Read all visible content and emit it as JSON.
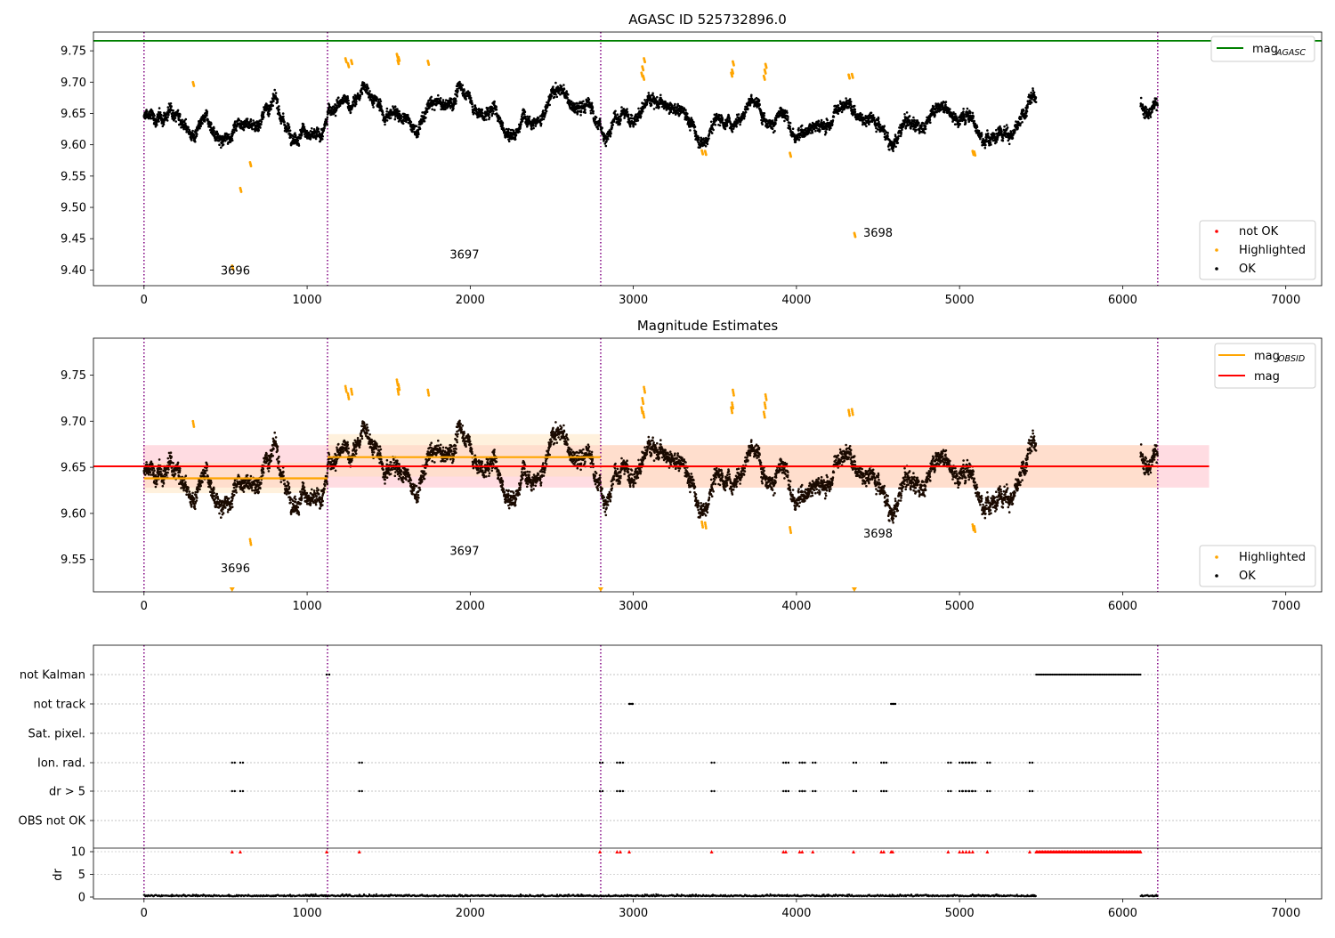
{
  "colors": {
    "ok": "#000000",
    "highlighted": "#ffa500",
    "not_ok": "#ff0000",
    "agasc": "#008000",
    "mag": "#ff0000",
    "mag_obsid": "#ffa500",
    "boundary": "#800080",
    "mag_band": "#ffc0cb",
    "obs_band": "#ffe0b3"
  },
  "chart_data": [
    {
      "type": "scatter",
      "title": "AGASC ID 525732896.0",
      "xlim": [
        -310,
        7220
      ],
      "ylim": [
        9.375,
        9.78
      ],
      "xticks": [
        0,
        1000,
        2000,
        3000,
        4000,
        5000,
        6000,
        7000
      ],
      "yticks": [
        9.4,
        9.45,
        9.5,
        9.55,
        9.6,
        9.65,
        9.7,
        9.75
      ],
      "ytick_labels": [
        "9.40",
        "9.45",
        "9.50",
        "9.55",
        "9.60",
        "9.65",
        "9.70",
        "9.75"
      ],
      "obs_boundaries": [
        0,
        1125,
        2800,
        6215
      ],
      "obs_labels": [
        {
          "text": "3696",
          "x": 560,
          "y": 9.393
        },
        {
          "text": "3697",
          "x": 1965,
          "y": 9.418
        },
        {
          "text": "3698",
          "x": 4500,
          "y": 9.453
        }
      ],
      "agasc_mag": 9.766,
      "legend_top": {
        "position": "upper right",
        "entries": [
          {
            "label": "mag",
            "sub": "AGASC"
          }
        ]
      },
      "legend_bottom": {
        "position": "lower right",
        "entries": [
          "not OK",
          "Highlighted",
          "OK"
        ]
      },
      "segments": [
        {
          "x": [
            0,
            1125
          ],
          "base": [
            9.63,
            9.64
          ]
        },
        {
          "x": [
            1125,
            2800
          ],
          "base": [
            9.655,
            9.655
          ]
        },
        {
          "x": [
            2800,
            5470
          ],
          "base": [
            9.65,
            9.64
          ]
        },
        {
          "x": [
            6110,
            6215
          ],
          "base": [
            9.655,
            9.655
          ]
        }
      ],
      "highlighted_points": [
        [
          300,
          9.7
        ],
        [
          540,
          9.407
        ],
        [
          590,
          9.531
        ],
        [
          650,
          9.572
        ],
        [
          1235,
          9.738
        ],
        [
          1250,
          9.73
        ],
        [
          1270,
          9.735
        ],
        [
          1550,
          9.745
        ],
        [
          1555,
          9.735
        ],
        [
          1560,
          9.74
        ],
        [
          1740,
          9.734
        ],
        [
          3050,
          9.715
        ],
        [
          3055,
          9.725
        ],
        [
          3060,
          9.71
        ],
        [
          3065,
          9.738
        ],
        [
          3420,
          9.591
        ],
        [
          3440,
          9.59
        ],
        [
          3600,
          9.715
        ],
        [
          3605,
          9.72
        ],
        [
          3610,
          9.733
        ],
        [
          3800,
          9.71
        ],
        [
          3805,
          9.72
        ],
        [
          3810,
          9.729
        ],
        [
          3960,
          9.587
        ],
        [
          4320,
          9.712
        ],
        [
          4340,
          9.713
        ],
        [
          4355,
          9.459
        ],
        [
          5080,
          9.59
        ],
        [
          5090,
          9.589
        ]
      ]
    },
    {
      "type": "scatter",
      "title": "Magnitude Estimates",
      "xlim": [
        -310,
        7220
      ],
      "ylim": [
        9.515,
        9.79
      ],
      "xticks": [
        0,
        1000,
        2000,
        3000,
        4000,
        5000,
        6000,
        7000
      ],
      "yticks": [
        9.55,
        9.6,
        9.65,
        9.7,
        9.75
      ],
      "ytick_labels": [
        "9.55",
        "9.60",
        "9.65",
        "9.70",
        "9.75"
      ],
      "obs_boundaries": [
        0,
        1125,
        2800,
        6215
      ],
      "obs_labels": [
        {
          "text": "3696",
          "x": 560,
          "y": 9.536
        },
        {
          "text": "3697",
          "x": 1965,
          "y": 9.555
        },
        {
          "text": "3698",
          "x": 4500,
          "y": 9.574
        }
      ],
      "mag": 9.651,
      "mag_band": [
        9.628,
        9.674,
        -5,
        6530
      ],
      "mag_obsid": [
        {
          "x": [
            0,
            1125
          ],
          "y": 9.638,
          "band": [
            9.622,
            9.655
          ]
        },
        {
          "x": [
            1125,
            2800
          ],
          "y": 9.661,
          "band": [
            9.64,
            9.686
          ]
        },
        {
          "x": [
            2800,
            6215
          ],
          "y": 9.651,
          "band": [
            9.628,
            9.674
          ]
        }
      ],
      "legend_top": {
        "position": "upper right",
        "entries": [
          {
            "label": "mag",
            "sub": "OBSID"
          },
          {
            "label": "mag",
            "sub": ""
          }
        ]
      },
      "legend_bottom": {
        "position": "lower right",
        "entries": [
          "Highlighted",
          "OK"
        ]
      },
      "highlighted_points": [
        [
          300,
          9.7
        ],
        [
          1235,
          9.738
        ],
        [
          1250,
          9.73
        ],
        [
          1270,
          9.735
        ],
        [
          1550,
          9.745
        ],
        [
          1555,
          9.735
        ],
        [
          1560,
          9.74
        ],
        [
          1740,
          9.734
        ],
        [
          3050,
          9.715
        ],
        [
          3055,
          9.725
        ],
        [
          3060,
          9.71
        ],
        [
          3065,
          9.737
        ],
        [
          3420,
          9.591
        ],
        [
          3440,
          9.59
        ],
        [
          3600,
          9.715
        ],
        [
          3605,
          9.72
        ],
        [
          3610,
          9.734
        ],
        [
          3800,
          9.71
        ],
        [
          3805,
          9.72
        ],
        [
          3810,
          9.729
        ],
        [
          3960,
          9.585
        ],
        [
          4320,
          9.712
        ],
        [
          4340,
          9.713
        ],
        [
          5080,
          9.588
        ],
        [
          5090,
          9.586
        ],
        [
          650,
          9.572
        ]
      ],
      "clipped_markers": [
        540,
        2800,
        4355
      ]
    },
    {
      "type": "scatter",
      "title": "",
      "xlim": [
        -310,
        7220
      ],
      "xticks": [
        0,
        1000,
        2000,
        3000,
        4000,
        5000,
        6000,
        7000
      ],
      "flag_categories": [
        "not Kalman",
        "not track",
        "Sat. pixel.",
        "Ion. rad.",
        "dr > 5",
        "OBS not OK"
      ],
      "obs_boundaries": [
        0,
        1125,
        2800,
        6215
      ],
      "flag_points": {
        "not Kalman": {
          "range": [
            5470,
            6110
          ],
          "points": [
            1120
          ]
        },
        "not track": {
          "points": [
            2975,
            2980,
            4580,
            4590
          ]
        },
        "Sat. pixel.": {
          "points": []
        },
        "Ion. rad.": {
          "points": [
            540,
            590,
            1320,
            2795,
            2900,
            2920,
            3480,
            3920,
            3935,
            4020,
            4035,
            4100,
            4350,
            4520,
            4535,
            4930,
            5000,
            5020,
            5040,
            5060,
            5080,
            5170,
            5430
          ]
        },
        "dr > 5": {
          "points": [
            540,
            590,
            1320,
            2795,
            2900,
            2920,
            3480,
            3920,
            3935,
            4020,
            4035,
            4100,
            4350,
            4520,
            4535,
            4930,
            5000,
            5020,
            5040,
            5060,
            5080,
            5170,
            5430
          ]
        },
        "OBS not OK": {
          "points": []
        }
      },
      "dr_ylabel": "dr",
      "dr_yticks": [
        0,
        5,
        10
      ],
      "dr_ylim": [
        -0.5,
        10.4
      ],
      "dr_clipped": [
        540,
        590,
        1120,
        1320,
        2795,
        2900,
        2920,
        2975,
        3480,
        3920,
        3935,
        4020,
        4035,
        4100,
        4350,
        4520,
        4535,
        4580,
        4590,
        4930,
        5000,
        5020,
        5040,
        5060,
        5080,
        5170,
        5430
      ]
    }
  ]
}
